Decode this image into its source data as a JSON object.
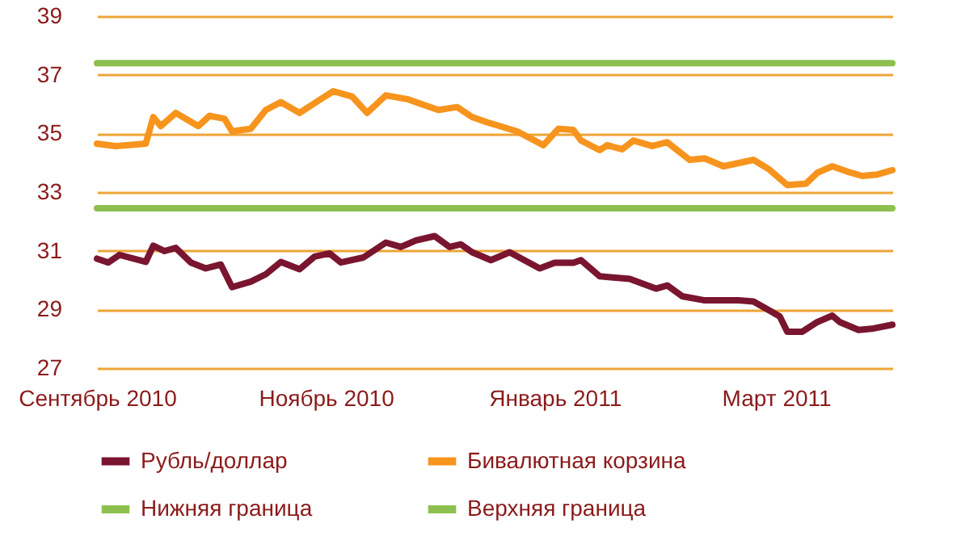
{
  "chart_data": {
    "type": "line",
    "x": [
      "2010-09-01",
      "2010-09-04",
      "2010-09-07",
      "2010-09-14",
      "2010-09-16",
      "2010-09-19",
      "2010-09-22",
      "2010-09-26",
      "2010-09-30",
      "2010-10-04",
      "2010-10-07",
      "2010-10-12",
      "2010-10-16",
      "2010-10-20",
      "2010-10-25",
      "2010-10-29",
      "2010-11-02",
      "2010-11-05",
      "2010-11-11",
      "2010-11-17",
      "2010-11-21",
      "2010-11-25",
      "2010-11-30",
      "2010-12-04",
      "2010-12-07",
      "2010-12-10",
      "2010-12-15",
      "2010-12-20",
      "2010-12-28",
      "2011-01-01",
      "2011-01-06",
      "2011-01-08",
      "2011-01-13",
      "2011-01-21",
      "2011-01-28",
      "2011-01-31",
      "2011-02-04",
      "2011-02-10",
      "2011-02-19",
      "2011-02-23",
      "2011-02-27",
      "2011-03-02",
      "2011-03-04",
      "2011-03-08",
      "2011-03-12",
      "2011-03-16",
      "2011-03-18",
      "2011-03-23",
      "2011-03-27",
      "2011-04-01"
    ],
    "series": [
      {
        "name": "Рубль/доллар",
        "color": "#7a1530",
        "values": [
          30.73,
          30.6,
          30.86,
          30.62,
          31.17,
          30.99,
          31.1,
          30.6,
          30.4,
          30.53,
          29.76,
          29.95,
          30.2,
          30.62,
          30.37,
          30.8,
          30.91,
          30.6,
          30.77,
          31.28,
          31.13,
          31.35,
          31.5,
          31.13,
          31.22,
          30.95,
          30.68,
          30.95,
          30.4,
          30.59,
          30.59,
          30.68,
          30.13,
          30.04,
          29.71,
          29.82,
          29.45,
          29.31,
          29.31,
          29.27,
          28.98,
          28.76,
          28.24,
          28.24,
          28.57,
          28.79,
          28.57,
          28.3,
          28.35,
          28.48
        ]
      },
      {
        "name": "Бивалютная корзина",
        "color": "#f7941d",
        "x": [
          "2010-09-01",
          "2010-09-06",
          "2010-09-14",
          "2010-09-16",
          "2010-09-18",
          "2010-09-22",
          "2010-09-28",
          "2010-10-01",
          "2010-10-05",
          "2010-10-07",
          "2010-10-12",
          "2010-10-16",
          "2010-10-20",
          "2010-10-25",
          "2010-10-31",
          "2010-11-03",
          "2010-11-08",
          "2010-11-12",
          "2010-11-17",
          "2010-11-23",
          "2010-12-01",
          "2010-12-06",
          "2010-12-10",
          "2010-12-14",
          "2010-12-22",
          "2010-12-29",
          "2011-01-02",
          "2011-01-06",
          "2011-01-08",
          "2011-01-13",
          "2011-01-15",
          "2011-01-19",
          "2011-01-22",
          "2011-01-27",
          "2011-01-31",
          "2011-02-06",
          "2011-02-10",
          "2011-02-15",
          "2011-02-23",
          "2011-02-27",
          "2011-03-04",
          "2011-03-09",
          "2011-03-12",
          "2011-03-16",
          "2011-03-20",
          "2011-03-24",
          "2011-03-28",
          "2011-04-01"
        ],
        "values": [
          34.65,
          34.57,
          34.65,
          35.56,
          35.25,
          35.7,
          35.25,
          35.6,
          35.5,
          35.07,
          35.16,
          35.8,
          36.07,
          35.7,
          36.2,
          36.44,
          36.26,
          35.7,
          36.3,
          36.16,
          35.8,
          35.9,
          35.56,
          35.38,
          35.07,
          34.6,
          35.16,
          35.12,
          34.76,
          34.43,
          34.6,
          34.46,
          34.76,
          34.57,
          34.7,
          34.1,
          34.15,
          33.88,
          34.1,
          33.79,
          33.24,
          33.29,
          33.66,
          33.88,
          33.7,
          33.55,
          33.6,
          33.75
        ]
      },
      {
        "name": "Нижняя граница",
        "color": "#8dc04e",
        "x": [
          "2010-09-01",
          "2011-04-01"
        ],
        "values": [
          32.45,
          32.45
        ]
      },
      {
        "name": "Верхняя граница",
        "color": "#8dc04e",
        "x": [
          "2010-09-01",
          "2011-04-01"
        ],
        "values": [
          37.4,
          37.4
        ]
      }
    ],
    "xlim": [
      "2010-09-01",
      "2011-04-01"
    ],
    "xticks": [
      {
        "value": "2010-09-01",
        "label": "Сентябрь 2010"
      },
      {
        "value": "2010-11-01",
        "label": "Ноябрь 2010"
      },
      {
        "value": "2011-01-01",
        "label": "Январь 2011"
      },
      {
        "value": "2011-03-01",
        "label": "Март 2011"
      }
    ],
    "ylim": [
      27,
      39
    ],
    "yticks": [
      27,
      29,
      31,
      33,
      35,
      37,
      39
    ],
    "grid": "y",
    "legend": "bottom"
  }
}
